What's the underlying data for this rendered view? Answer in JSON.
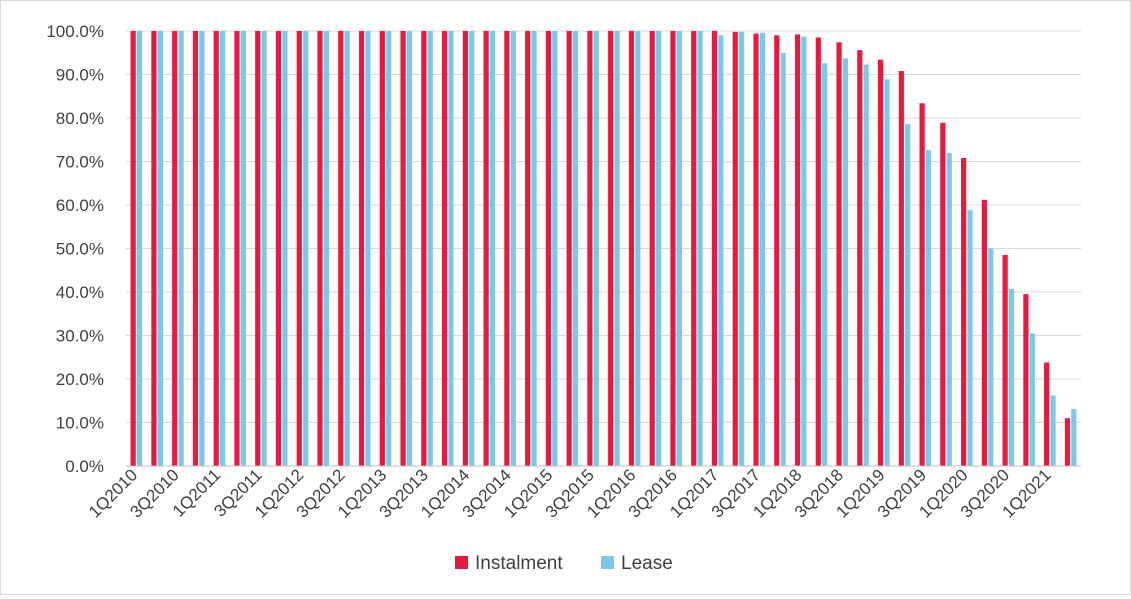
{
  "chart_data": {
    "type": "bar",
    "title": "",
    "xlabel": "",
    "ylabel": "",
    "ylim": [
      0,
      100
    ],
    "y_tick_step": 10,
    "y_tick_format": "percent_1dp",
    "grid": true,
    "legend_position": "bottom",
    "categories": [
      "1Q2010",
      "2Q2010",
      "3Q2010",
      "4Q2010",
      "1Q2011",
      "2Q2011",
      "3Q2011",
      "4Q2011",
      "1Q2012",
      "2Q2012",
      "3Q2012",
      "4Q2012",
      "1Q2013",
      "2Q2013",
      "3Q2013",
      "4Q2013",
      "1Q2014",
      "2Q2014",
      "3Q2014",
      "4Q2014",
      "1Q2015",
      "2Q2015",
      "3Q2015",
      "4Q2015",
      "1Q2016",
      "2Q2016",
      "3Q2016",
      "4Q2016",
      "1Q2017",
      "2Q2017",
      "3Q2017",
      "4Q2017",
      "1Q2018",
      "2Q2018",
      "3Q2018",
      "4Q2018",
      "1Q2019",
      "2Q2019",
      "3Q2019",
      "4Q2019",
      "1Q2020",
      "2Q2020",
      "3Q2020",
      "4Q2020",
      "1Q2021",
      "2Q2021"
    ],
    "x_tick_labels_shown": [
      "1Q2010",
      "3Q2010",
      "1Q2011",
      "3Q2011",
      "1Q2012",
      "3Q2012",
      "1Q2013",
      "3Q2013",
      "1Q2014",
      "3Q2014",
      "1Q2015",
      "3Q2015",
      "1Q2016",
      "3Q2016",
      "1Q2017",
      "3Q2017",
      "1Q2018",
      "3Q2018",
      "1Q2019",
      "3Q2019",
      "1Q2020",
      "3Q2020",
      "1Q2021"
    ],
    "series": [
      {
        "name": "Instalment",
        "color": "#e8193c",
        "values": [
          100,
          100,
          100,
          100,
          100,
          100,
          100,
          100,
          100,
          100,
          100,
          100,
          100,
          100,
          100,
          100,
          100,
          100,
          100,
          100,
          100,
          100,
          100,
          100,
          100,
          100,
          100,
          100,
          100,
          99.8,
          99.4,
          99.0,
          99.2,
          98.5,
          97.4,
          95.6,
          93.4,
          90.8,
          83.4,
          78.9,
          70.8,
          61.2,
          48.5,
          39.5,
          23.8,
          11.0
        ]
      },
      {
        "name": "Lease",
        "color": "#7cc8ec",
        "values": [
          100,
          100,
          100,
          100,
          100,
          100,
          100,
          100,
          100,
          100,
          100,
          100,
          100,
          100,
          100,
          100,
          100,
          100,
          100,
          100,
          100,
          100,
          100,
          100,
          100,
          100,
          100,
          100,
          99.0,
          99.8,
          99.6,
          95.0,
          98.7,
          92.6,
          93.7,
          92.3,
          88.9,
          78.6,
          72.6,
          72.0,
          58.9,
          50.0,
          40.7,
          30.5,
          16.2,
          13.1
        ]
      }
    ]
  }
}
